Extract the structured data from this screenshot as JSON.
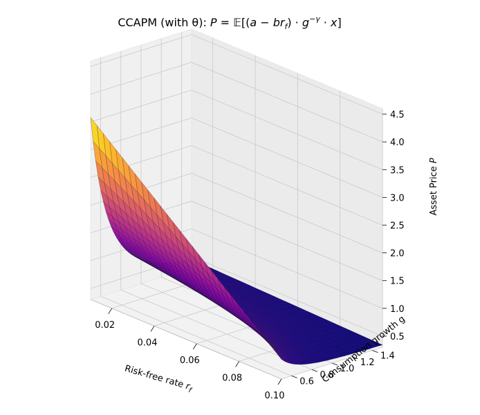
{
  "chart_data": {
    "type": "surface",
    "title": "CCAPM (with θ): P = 𝔼[(a − br_f) · g^{−γ} · x]",
    "title_parts": {
      "prefix": "CCAPM (with θ): ",
      "lhs": "P",
      "eq": " = 𝔼[(",
      "a": "a",
      "minus": " − ",
      "b": "b",
      "r": "r",
      "r_sub": "f",
      "close": ") · ",
      "g": "g",
      "g_sup": "−γ",
      "dot": " · ",
      "x": "x",
      "end": "]"
    },
    "xlabel": "Risk-free rate r_f",
    "xlabel_parts": {
      "text": "Risk-free rate ",
      "var": "r",
      "sub": "f"
    },
    "ylabel": "Consumption growth g",
    "zlabel_parts": {
      "text": "Asset Price ",
      "var": "P"
    },
    "zlabel": "Asset Price P",
    "x_range": [
      0.01,
      0.1
    ],
    "y_range": [
      0.5,
      1.5
    ],
    "zlim": [
      0.3,
      4.6
    ],
    "x_ticks": [
      0.02,
      0.04,
      0.06,
      0.08,
      0.1
    ],
    "x_tick_labels": [
      "0.02",
      "0.04",
      "0.06",
      "0.08",
      "0.10"
    ],
    "y_ticks": [
      0.6,
      0.8,
      1.0,
      1.2,
      1.4
    ],
    "y_tick_labels": [
      "0.6",
      "0.8",
      "1.0",
      "1.2",
      "1.4"
    ],
    "z_ticks": [
      0.5,
      1.0,
      1.5,
      2.0,
      2.5,
      3.0,
      3.5,
      4.0,
      4.5
    ],
    "z_tick_labels": [
      "0.5",
      "1.0",
      "1.5",
      "2.0",
      "2.5",
      "3.0",
      "3.5",
      "4.0",
      "4.5"
    ],
    "corner_values": [
      {
        "rf": 0.01,
        "g": 0.5,
        "P": 3.6
      },
      {
        "rf": 0.1,
        "g": 0.5,
        "P": 0.45
      },
      {
        "rf": 0.01,
        "g": 1.5,
        "P": 0.4
      },
      {
        "rf": 0.1,
        "g": 1.5,
        "P": 0.35
      }
    ],
    "surface_model": {
      "description": "P decreases with r_f and with g; steepest at low g",
      "gamma": 3.0
    },
    "colormap": "plasma",
    "grid": true
  }
}
